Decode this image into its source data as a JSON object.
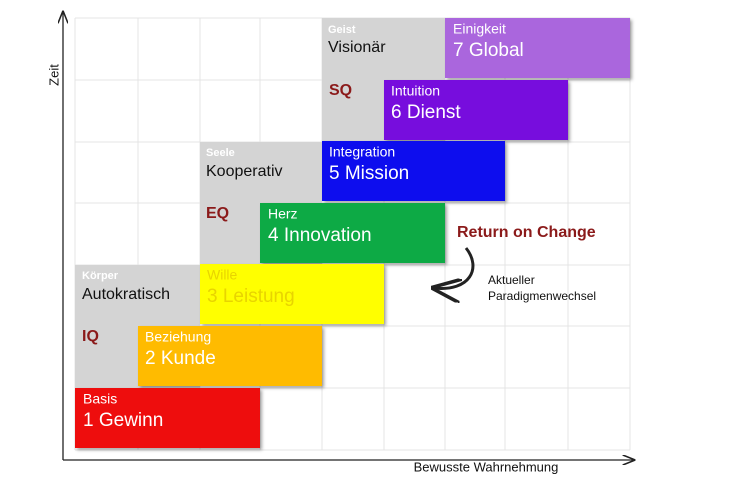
{
  "axes": {
    "y_label": "Zeit",
    "x_label": "Bewusste Wahrnehmung"
  },
  "levels": [
    {
      "header": "Körper",
      "name": "Autokratisch",
      "quotient": "IQ"
    },
    {
      "header": "Seele",
      "name": "Kooperativ",
      "quotient": "EQ"
    },
    {
      "header": "Geist",
      "name": "Visionär",
      "quotient": "SQ"
    }
  ],
  "stages": [
    {
      "label": "Basis",
      "title": "1 Gewinn"
    },
    {
      "label": "Beziehung",
      "title": "2 Kunde"
    },
    {
      "label": "Wille",
      "title": "3 Leistung"
    },
    {
      "label": "Herz",
      "title": "4 Innovation"
    },
    {
      "label": "Integration",
      "title": "5 Mission"
    },
    {
      "label": "Intuition",
      "title": "6 Dienst"
    },
    {
      "label": "Einigkeit",
      "title": "7 Global"
    }
  ],
  "annotation": {
    "title": "Return on Change",
    "lines": [
      "Aktueller",
      "Paradigmenwechsel"
    ]
  }
}
